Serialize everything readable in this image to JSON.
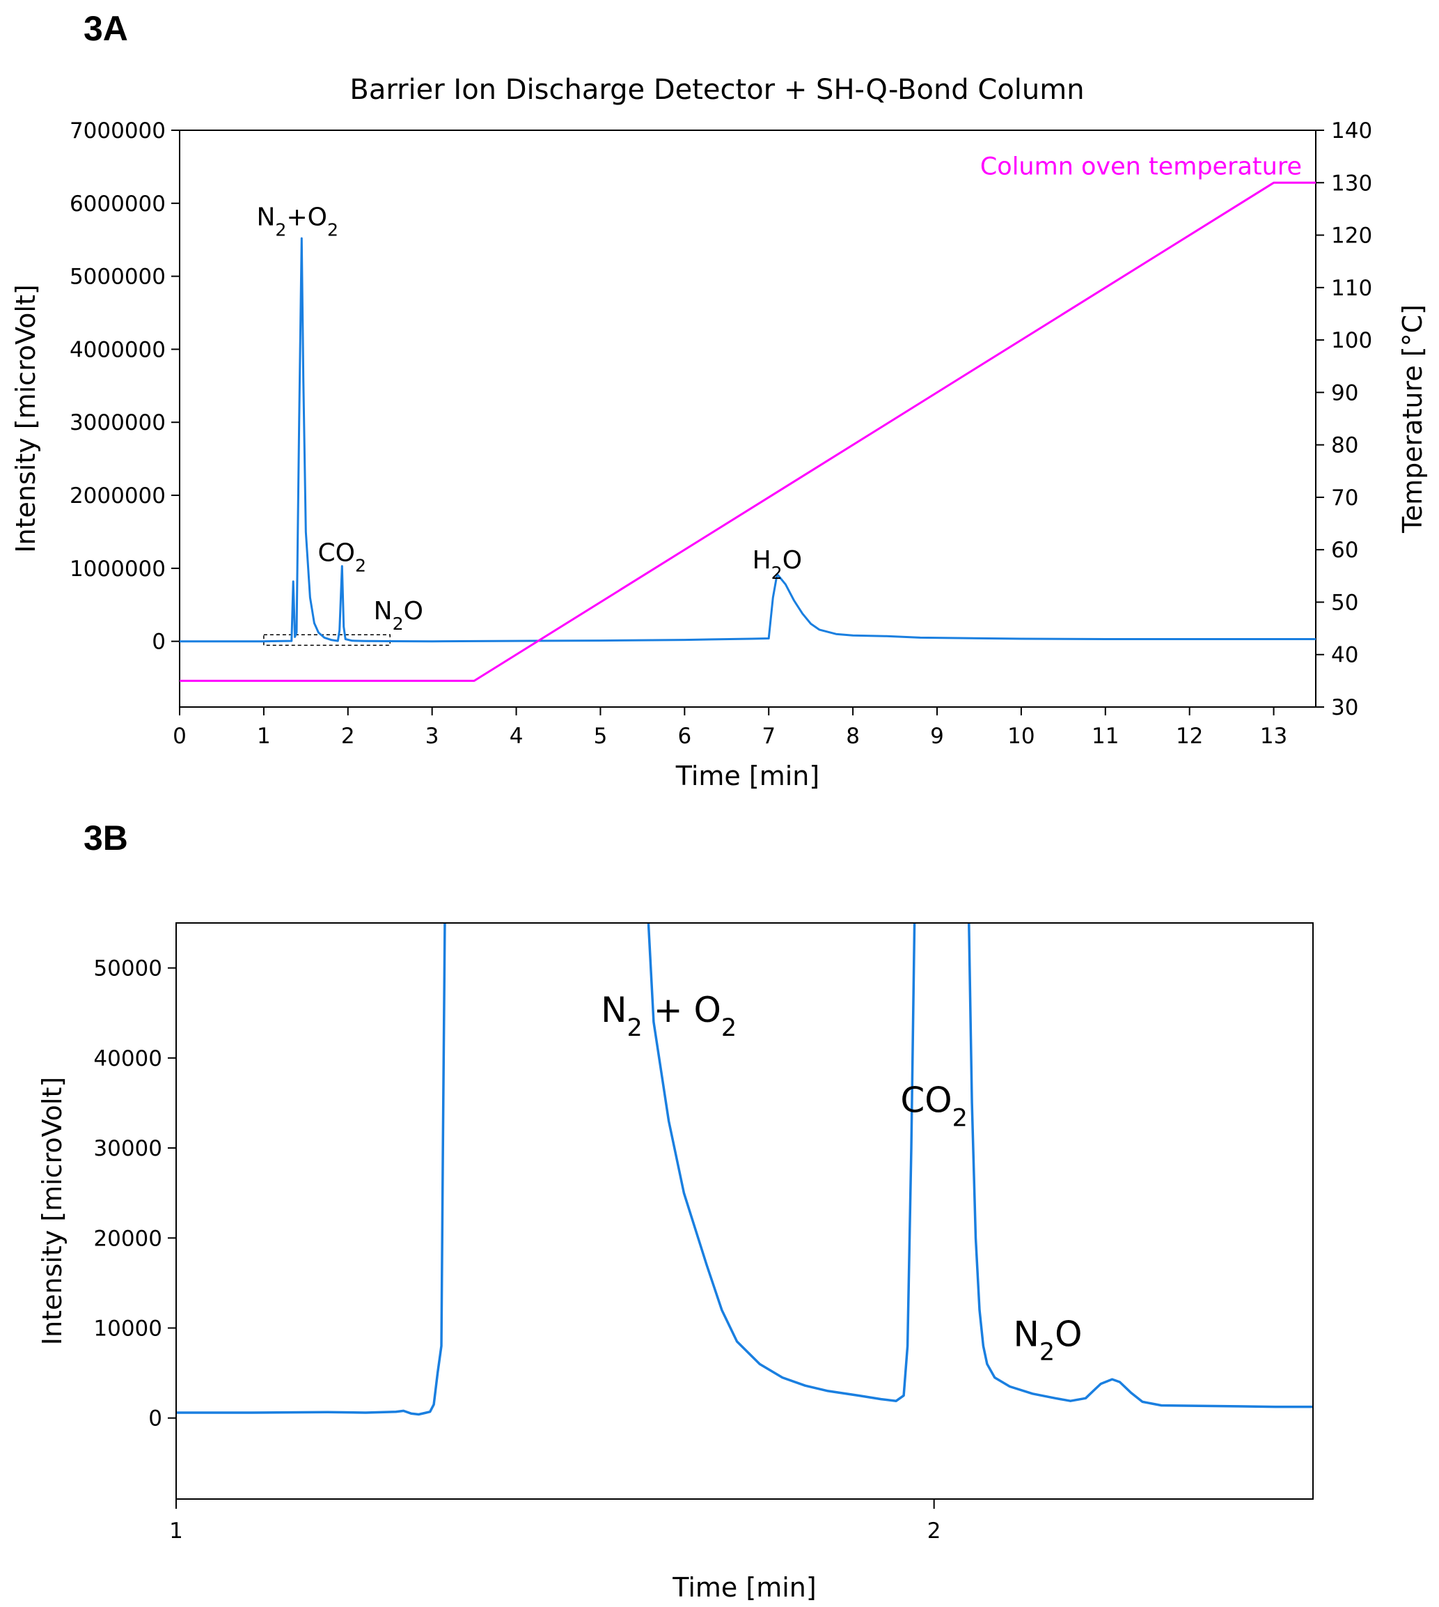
{
  "colors": {
    "intensity": "#1a7fe0",
    "temperature": "#ff00ff",
    "axis": "#000000"
  },
  "chart_data": [
    {
      "panel": "3A",
      "type": "line",
      "title": "Barrier Ion Discharge Detector + SH-Q-Bond Column",
      "xlabel": "Time [min]",
      "ylabel": "Intensity [microVolt]",
      "y2label": "Temperature [°C]",
      "xlim": [
        0,
        13.5
      ],
      "ylim": [
        -900000,
        7000000
      ],
      "y2lim": [
        30,
        140
      ],
      "xticks": [
        0,
        1,
        2,
        3,
        4,
        5,
        6,
        7,
        8,
        9,
        10,
        11,
        12,
        13
      ],
      "yticks": [
        0,
        1000000,
        2000000,
        3000000,
        4000000,
        5000000,
        6000000,
        7000000
      ],
      "y2ticks": [
        30,
        40,
        50,
        60,
        70,
        80,
        90,
        100,
        110,
        120,
        130,
        140
      ],
      "series": [
        {
          "name": "",
          "axis": "left",
          "color": "#1a7fe0",
          "points": [
            [
              0,
              0
            ],
            [
              1.0,
              0
            ],
            [
              1.33,
              5000
            ],
            [
              1.35,
              820000
            ],
            [
              1.37,
              60000
            ],
            [
              1.39,
              120000
            ],
            [
              1.42,
              3000000
            ],
            [
              1.45,
              5520000
            ],
            [
              1.47,
              3600000
            ],
            [
              1.5,
              1500000
            ],
            [
              1.55,
              600000
            ],
            [
              1.6,
              250000
            ],
            [
              1.65,
              120000
            ],
            [
              1.72,
              50000
            ],
            [
              1.8,
              20000
            ],
            [
              1.88,
              5000
            ],
            [
              1.9,
              150000
            ],
            [
              1.93,
              1030000
            ],
            [
              1.95,
              200000
            ],
            [
              1.97,
              30000
            ],
            [
              2.05,
              8000
            ],
            [
              2.2,
              4000
            ],
            [
              2.5,
              2000
            ],
            [
              3,
              0
            ],
            [
              4,
              5000
            ],
            [
              5,
              10000
            ],
            [
              6,
              20000
            ],
            [
              6.8,
              35000
            ],
            [
              7.0,
              40000
            ],
            [
              7.05,
              600000
            ],
            [
              7.1,
              920000
            ],
            [
              7.2,
              780000
            ],
            [
              7.3,
              560000
            ],
            [
              7.4,
              380000
            ],
            [
              7.5,
              240000
            ],
            [
              7.6,
              160000
            ],
            [
              7.8,
              100000
            ],
            [
              8.0,
              80000
            ],
            [
              8.4,
              70000
            ],
            [
              8.8,
              50000
            ],
            [
              10,
              35000
            ],
            [
              11,
              30000
            ],
            [
              12,
              30000
            ],
            [
              13.5,
              30000
            ]
          ]
        },
        {
          "name": "Column oven temperature",
          "axis": "right",
          "color": "#ff00ff",
          "points": [
            [
              0,
              35
            ],
            [
              3.5,
              35
            ],
            [
              13.0,
              130
            ],
            [
              13.5,
              130
            ]
          ]
        }
      ],
      "annotations": [
        {
          "text": "N",
          "sub1": "2",
          "mid": "+O",
          "sub2": "2",
          "x": 1.4,
          "y": 5700000
        },
        {
          "text": "CO",
          "sub1": "2",
          "x": 1.93,
          "y": 1100000
        },
        {
          "text": "N",
          "sub1": "2",
          "mid": "O",
          "x": 2.6,
          "y": 300000
        },
        {
          "text": "H",
          "sub1": "2",
          "mid": "O",
          "x": 7.1,
          "y": 1000000
        }
      ],
      "inset_box": {
        "x0": 1.0,
        "x1": 2.5,
        "y0": -55000,
        "y1": 90000
      }
    },
    {
      "panel": "3B",
      "type": "line",
      "title": "",
      "xlabel": "Time [min]",
      "ylabel": "Intensity [microVolt]",
      "xlim": [
        1.0,
        2.5
      ],
      "ylim": [
        -9000,
        55000
      ],
      "xticks": [
        1,
        2
      ],
      "yticks": [
        0,
        10000,
        20000,
        30000,
        40000,
        50000
      ],
      "series": [
        {
          "name": "",
          "color": "#1a7fe0",
          "points": [
            [
              1.0,
              600
            ],
            [
              1.1,
              600
            ],
            [
              1.2,
              650
            ],
            [
              1.25,
              600
            ],
            [
              1.29,
              700
            ],
            [
              1.3,
              800
            ],
            [
              1.31,
              500
            ],
            [
              1.32,
              400
            ],
            [
              1.33,
              600
            ],
            [
              1.335,
              700
            ],
            [
              1.34,
              1500
            ],
            [
              1.345,
              5000
            ],
            [
              1.35,
              8000
            ],
            [
              1.352,
              30000
            ],
            [
              1.355,
              60000
            ],
            [
              1.62,
              60000
            ],
            [
              1.63,
              44000
            ],
            [
              1.65,
              33000
            ],
            [
              1.67,
              25000
            ],
            [
              1.7,
              17000
            ],
            [
              1.72,
              12000
            ],
            [
              1.74,
              8500
            ],
            [
              1.77,
              6000
            ],
            [
              1.8,
              4500
            ],
            [
              1.83,
              3600
            ],
            [
              1.86,
              3000
            ],
            [
              1.9,
              2500
            ],
            [
              1.93,
              2100
            ],
            [
              1.95,
              1900
            ],
            [
              1.96,
              2500
            ],
            [
              1.965,
              8000
            ],
            [
              1.97,
              30000
            ],
            [
              1.975,
              60000
            ],
            [
              2.045,
              60000
            ],
            [
              2.05,
              35000
            ],
            [
              2.055,
              20000
            ],
            [
              2.06,
              12000
            ],
            [
              2.065,
              8000
            ],
            [
              2.07,
              6000
            ],
            [
              2.08,
              4500
            ],
            [
              2.1,
              3500
            ],
            [
              2.13,
              2700
            ],
            [
              2.16,
              2200
            ],
            [
              2.18,
              1900
            ],
            [
              2.2,
              2200
            ],
            [
              2.21,
              3000
            ],
            [
              2.22,
              3800
            ],
            [
              2.235,
              4300
            ],
            [
              2.245,
              4000
            ],
            [
              2.26,
              2800
            ],
            [
              2.275,
              1800
            ],
            [
              2.3,
              1400
            ],
            [
              2.35,
              1350
            ],
            [
              2.4,
              1300
            ],
            [
              2.45,
              1250
            ],
            [
              2.5,
              1250
            ]
          ]
        }
      ],
      "annotations": [
        {
          "text": "N",
          "sub1": "2",
          "mid": " + O",
          "sub2": "2",
          "x": 1.65,
          "y": 44000
        },
        {
          "text": "CO",
          "sub1": "2",
          "x": 2.0,
          "y": 34000
        },
        {
          "text": "N",
          "sub1": "2",
          "mid": "O",
          "x": 2.15,
          "y": 8000
        }
      ]
    }
  ]
}
